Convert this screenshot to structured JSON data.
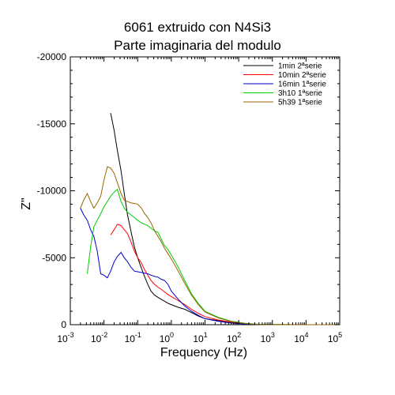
{
  "chart_data": {
    "type": "line",
    "title": [
      "6061 extruido con N4Si3",
      "Parte imaginaria del modulo"
    ],
    "xlabel": "Frequency (Hz)",
    "ylabel": "Z\"",
    "x_scale": "log",
    "xlim": [
      0.001,
      100000
    ],
    "ylim": [
      0,
      -20000
    ],
    "x_ticks": [
      {
        "base": "10",
        "exp": "-3"
      },
      {
        "base": "10",
        "exp": "-2"
      },
      {
        "base": "10",
        "exp": "-1"
      },
      {
        "base": "10",
        "exp": "0"
      },
      {
        "base": "10",
        "exp": "1"
      },
      {
        "base": "10",
        "exp": "2"
      },
      {
        "base": "10",
        "exp": "3"
      },
      {
        "base": "10",
        "exp": "4"
      },
      {
        "base": "10",
        "exp": "5"
      }
    ],
    "y_ticks": [
      {
        "value": -20000,
        "label": "-20000"
      },
      {
        "value": -15000,
        "label": "-15000"
      },
      {
        "value": -10000,
        "label": "-10000"
      },
      {
        "value": -5000,
        "label": "-5000"
      },
      {
        "value": 0,
        "label": "0"
      }
    ],
    "grid": false,
    "legend_position": "top-right",
    "series": [
      {
        "name": "1min 2ªserie",
        "color": "#000000",
        "x": [
          0.0158,
          0.02,
          0.025,
          0.032,
          0.04,
          0.05,
          0.063,
          0.08,
          0.1,
          0.13,
          0.16,
          0.2,
          0.25,
          0.32,
          0.4,
          0.5,
          0.63,
          0.8,
          1,
          1.6,
          2.5,
          4,
          6.3,
          10,
          25,
          63,
          160,
          400,
          1000,
          10000,
          100000
        ],
        "y": [
          -15800,
          -14500,
          -13000,
          -11500,
          -9800,
          -8200,
          -7000,
          -5800,
          -5000,
          -4200,
          -3600,
          -3000,
          -2500,
          -2200,
          -2050,
          -1900,
          -1750,
          -1600,
          -1500,
          -1300,
          -1150,
          -900,
          -650,
          -450,
          -300,
          -150,
          -60,
          -20,
          -5,
          0,
          0
        ]
      },
      {
        "name": "10min 2ªserie",
        "color": "#ff0000",
        "x": [
          0.0158,
          0.02,
          0.025,
          0.032,
          0.04,
          0.05,
          0.063,
          0.08,
          0.1,
          0.13,
          0.16,
          0.2,
          0.25,
          0.32,
          0.4,
          0.5,
          0.63,
          0.8,
          1,
          1.6,
          2.5,
          4,
          6.3,
          10,
          25,
          63,
          160,
          400,
          1000,
          10000,
          100000
        ],
        "y": [
          -6700,
          -7100,
          -7500,
          -7400,
          -7100,
          -6800,
          -6200,
          -5500,
          -5000,
          -4600,
          -4100,
          -3700,
          -3300,
          -3000,
          -2800,
          -2650,
          -2450,
          -2250,
          -2100,
          -1800,
          -1500,
          -1150,
          -850,
          -600,
          -350,
          -180,
          -70,
          -20,
          -5,
          0,
          0
        ]
      },
      {
        "name": "16min 1ªserie",
        "color": "#0000cc",
        "x": [
          0.002,
          0.0025,
          0.0032,
          0.004,
          0.005,
          0.0063,
          0.008,
          0.01,
          0.0126,
          0.0158,
          0.02,
          0.025,
          0.032,
          0.04,
          0.05,
          0.063,
          0.08,
          0.1,
          0.13,
          0.16,
          0.2,
          0.25,
          0.32,
          0.4,
          0.5,
          0.63,
          0.8,
          1,
          1.6,
          2.5,
          4,
          6.3,
          10,
          25,
          63,
          160,
          400,
          1000,
          10000,
          100000
        ],
        "y": [
          -8700,
          -8200,
          -7800,
          -7100,
          -6600,
          -5500,
          -3800,
          -3700,
          -3500,
          -4000,
          -4700,
          -5100,
          -5400,
          -5000,
          -4700,
          -4300,
          -4000,
          -3950,
          -3900,
          -3850,
          -3800,
          -3700,
          -3600,
          -3550,
          -3400,
          -3300,
          -3000,
          -2500,
          -1900,
          -1400,
          -1000,
          -700,
          -450,
          -250,
          -120,
          -40,
          -10,
          0,
          0,
          0
        ]
      },
      {
        "name": "3h10 1ªserie",
        "color": "#00cc00",
        "x": [
          0.0032,
          0.004,
          0.005,
          0.0063,
          0.008,
          0.01,
          0.0126,
          0.0158,
          0.02,
          0.025,
          0.032,
          0.04,
          0.05,
          0.063,
          0.08,
          0.1,
          0.13,
          0.16,
          0.2,
          0.25,
          0.32,
          0.4,
          0.5,
          0.63,
          0.8,
          1,
          1.6,
          2.5,
          4,
          6.3,
          10,
          25,
          63,
          160,
          400,
          1000,
          10000,
          100000
        ],
        "y": [
          -3800,
          -5800,
          -7300,
          -7800,
          -8300,
          -8800,
          -9200,
          -9600,
          -9900,
          -10100,
          -9200,
          -8700,
          -8400,
          -8200,
          -8000,
          -7800,
          -7600,
          -7500,
          -7400,
          -7200,
          -7000,
          -6900,
          -6400,
          -5900,
          -5600,
          -5200,
          -4300,
          -3300,
          -2300,
          -1600,
          -1000,
          -550,
          -250,
          -100,
          -30,
          -10,
          0,
          0
        ]
      },
      {
        "name": "5h39 1ªserie",
        "color": "#996600",
        "x": [
          0.002,
          0.0025,
          0.0032,
          0.004,
          0.005,
          0.0063,
          0.008,
          0.01,
          0.0126,
          0.0158,
          0.02,
          0.025,
          0.032,
          0.04,
          0.05,
          0.063,
          0.08,
          0.1,
          0.13,
          0.16,
          0.2,
          0.25,
          0.32,
          0.4,
          0.5,
          0.63,
          0.8,
          1,
          1.6,
          2.5,
          4,
          6.3,
          10,
          25,
          63,
          160,
          400,
          1000,
          10000,
          100000
        ],
        "y": [
          -8700,
          -9300,
          -9800,
          -9200,
          -8700,
          -9100,
          -9600,
          -10800,
          -11800,
          -11700,
          -11300,
          -10600,
          -9800,
          -9300,
          -9200,
          -9100,
          -9050,
          -9000,
          -8700,
          -8300,
          -8000,
          -7600,
          -7000,
          -6600,
          -6200,
          -5700,
          -5300,
          -4900,
          -4000,
          -3100,
          -2200,
          -1500,
          -950,
          -500,
          -220,
          -80,
          -20,
          -5,
          0,
          0
        ]
      }
    ]
  }
}
